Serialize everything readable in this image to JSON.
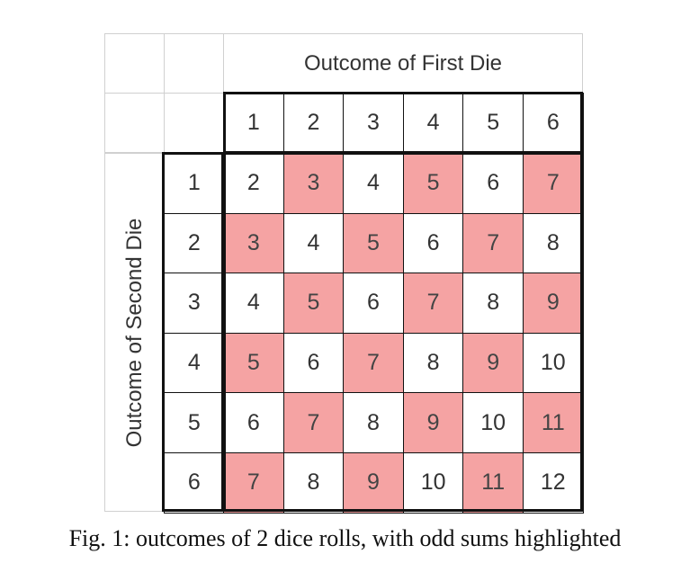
{
  "table": {
    "column_title": "Outcome of First Die",
    "row_title": "Outcome of Second Die",
    "column_headers": [
      "1",
      "2",
      "3",
      "4",
      "5",
      "6"
    ],
    "row_headers": [
      "1",
      "2",
      "3",
      "4",
      "5",
      "6"
    ],
    "sums": [
      [
        "2",
        "3",
        "4",
        "5",
        "6",
        "7"
      ],
      [
        "3",
        "4",
        "5",
        "6",
        "7",
        "8"
      ],
      [
        "4",
        "5",
        "6",
        "7",
        "8",
        "9"
      ],
      [
        "5",
        "6",
        "7",
        "8",
        "9",
        "10"
      ],
      [
        "6",
        "7",
        "8",
        "9",
        "10",
        "11"
      ],
      [
        "7",
        "8",
        "9",
        "10",
        "11",
        "12"
      ]
    ],
    "highlight_color": "#f5a3a3",
    "highlight_rule": "odd"
  },
  "caption": "Fig. 1: outcomes of 2 dice rolls, with odd sums highlighted"
}
